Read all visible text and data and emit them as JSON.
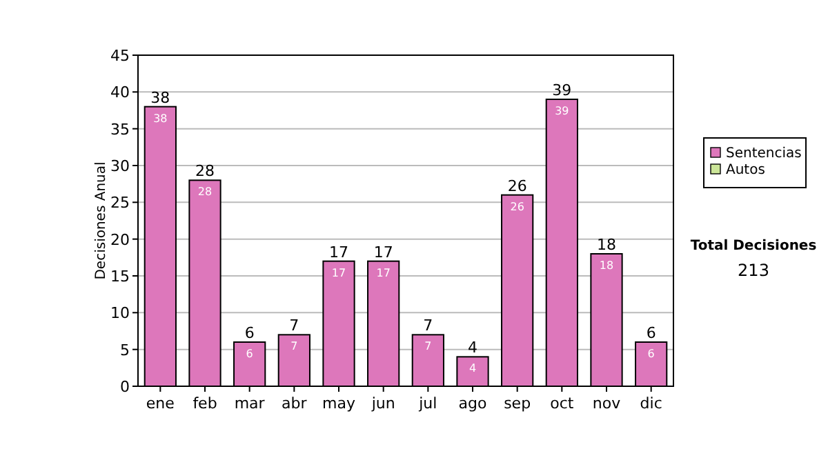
{
  "chart_data": {
    "type": "bar",
    "stacked": true,
    "ylabel": "Decisiones Anual",
    "categories": [
      "ene",
      "feb",
      "mar",
      "abr",
      "may",
      "jun",
      "jul",
      "ago",
      "sep",
      "oct",
      "nov",
      "dic"
    ],
    "series": [
      {
        "name": "Sentencias",
        "color": "#dd77bb",
        "values": [
          38,
          28,
          6,
          7,
          17,
          17,
          7,
          4,
          26,
          39,
          18,
          6
        ],
        "value_labels": [
          "38",
          "28",
          "6",
          "7",
          "17",
          "17",
          "7",
          "4",
          "26",
          "39",
          "18",
          "6"
        ]
      },
      {
        "name": "Autos",
        "color": "#cce699",
        "values": [
          0,
          0,
          0,
          0,
          0,
          0,
          0,
          0,
          0,
          0,
          0,
          0
        ],
        "value_labels": [
          null,
          null,
          null,
          null,
          null,
          null,
          null,
          null,
          null,
          null,
          null,
          null
        ]
      }
    ],
    "totals": [
      "38",
      "28",
      "6",
      "7",
      "17",
      "17",
      "7",
      "4",
      "26",
      "39",
      "18",
      "6"
    ],
    "ylim": [
      0,
      45
    ],
    "yticks": [
      0,
      5,
      10,
      15,
      20,
      25,
      30,
      35,
      40,
      45
    ],
    "grid": "y",
    "legend": "right",
    "annotations": [
      "Total Decisiones",
      "213"
    ]
  }
}
